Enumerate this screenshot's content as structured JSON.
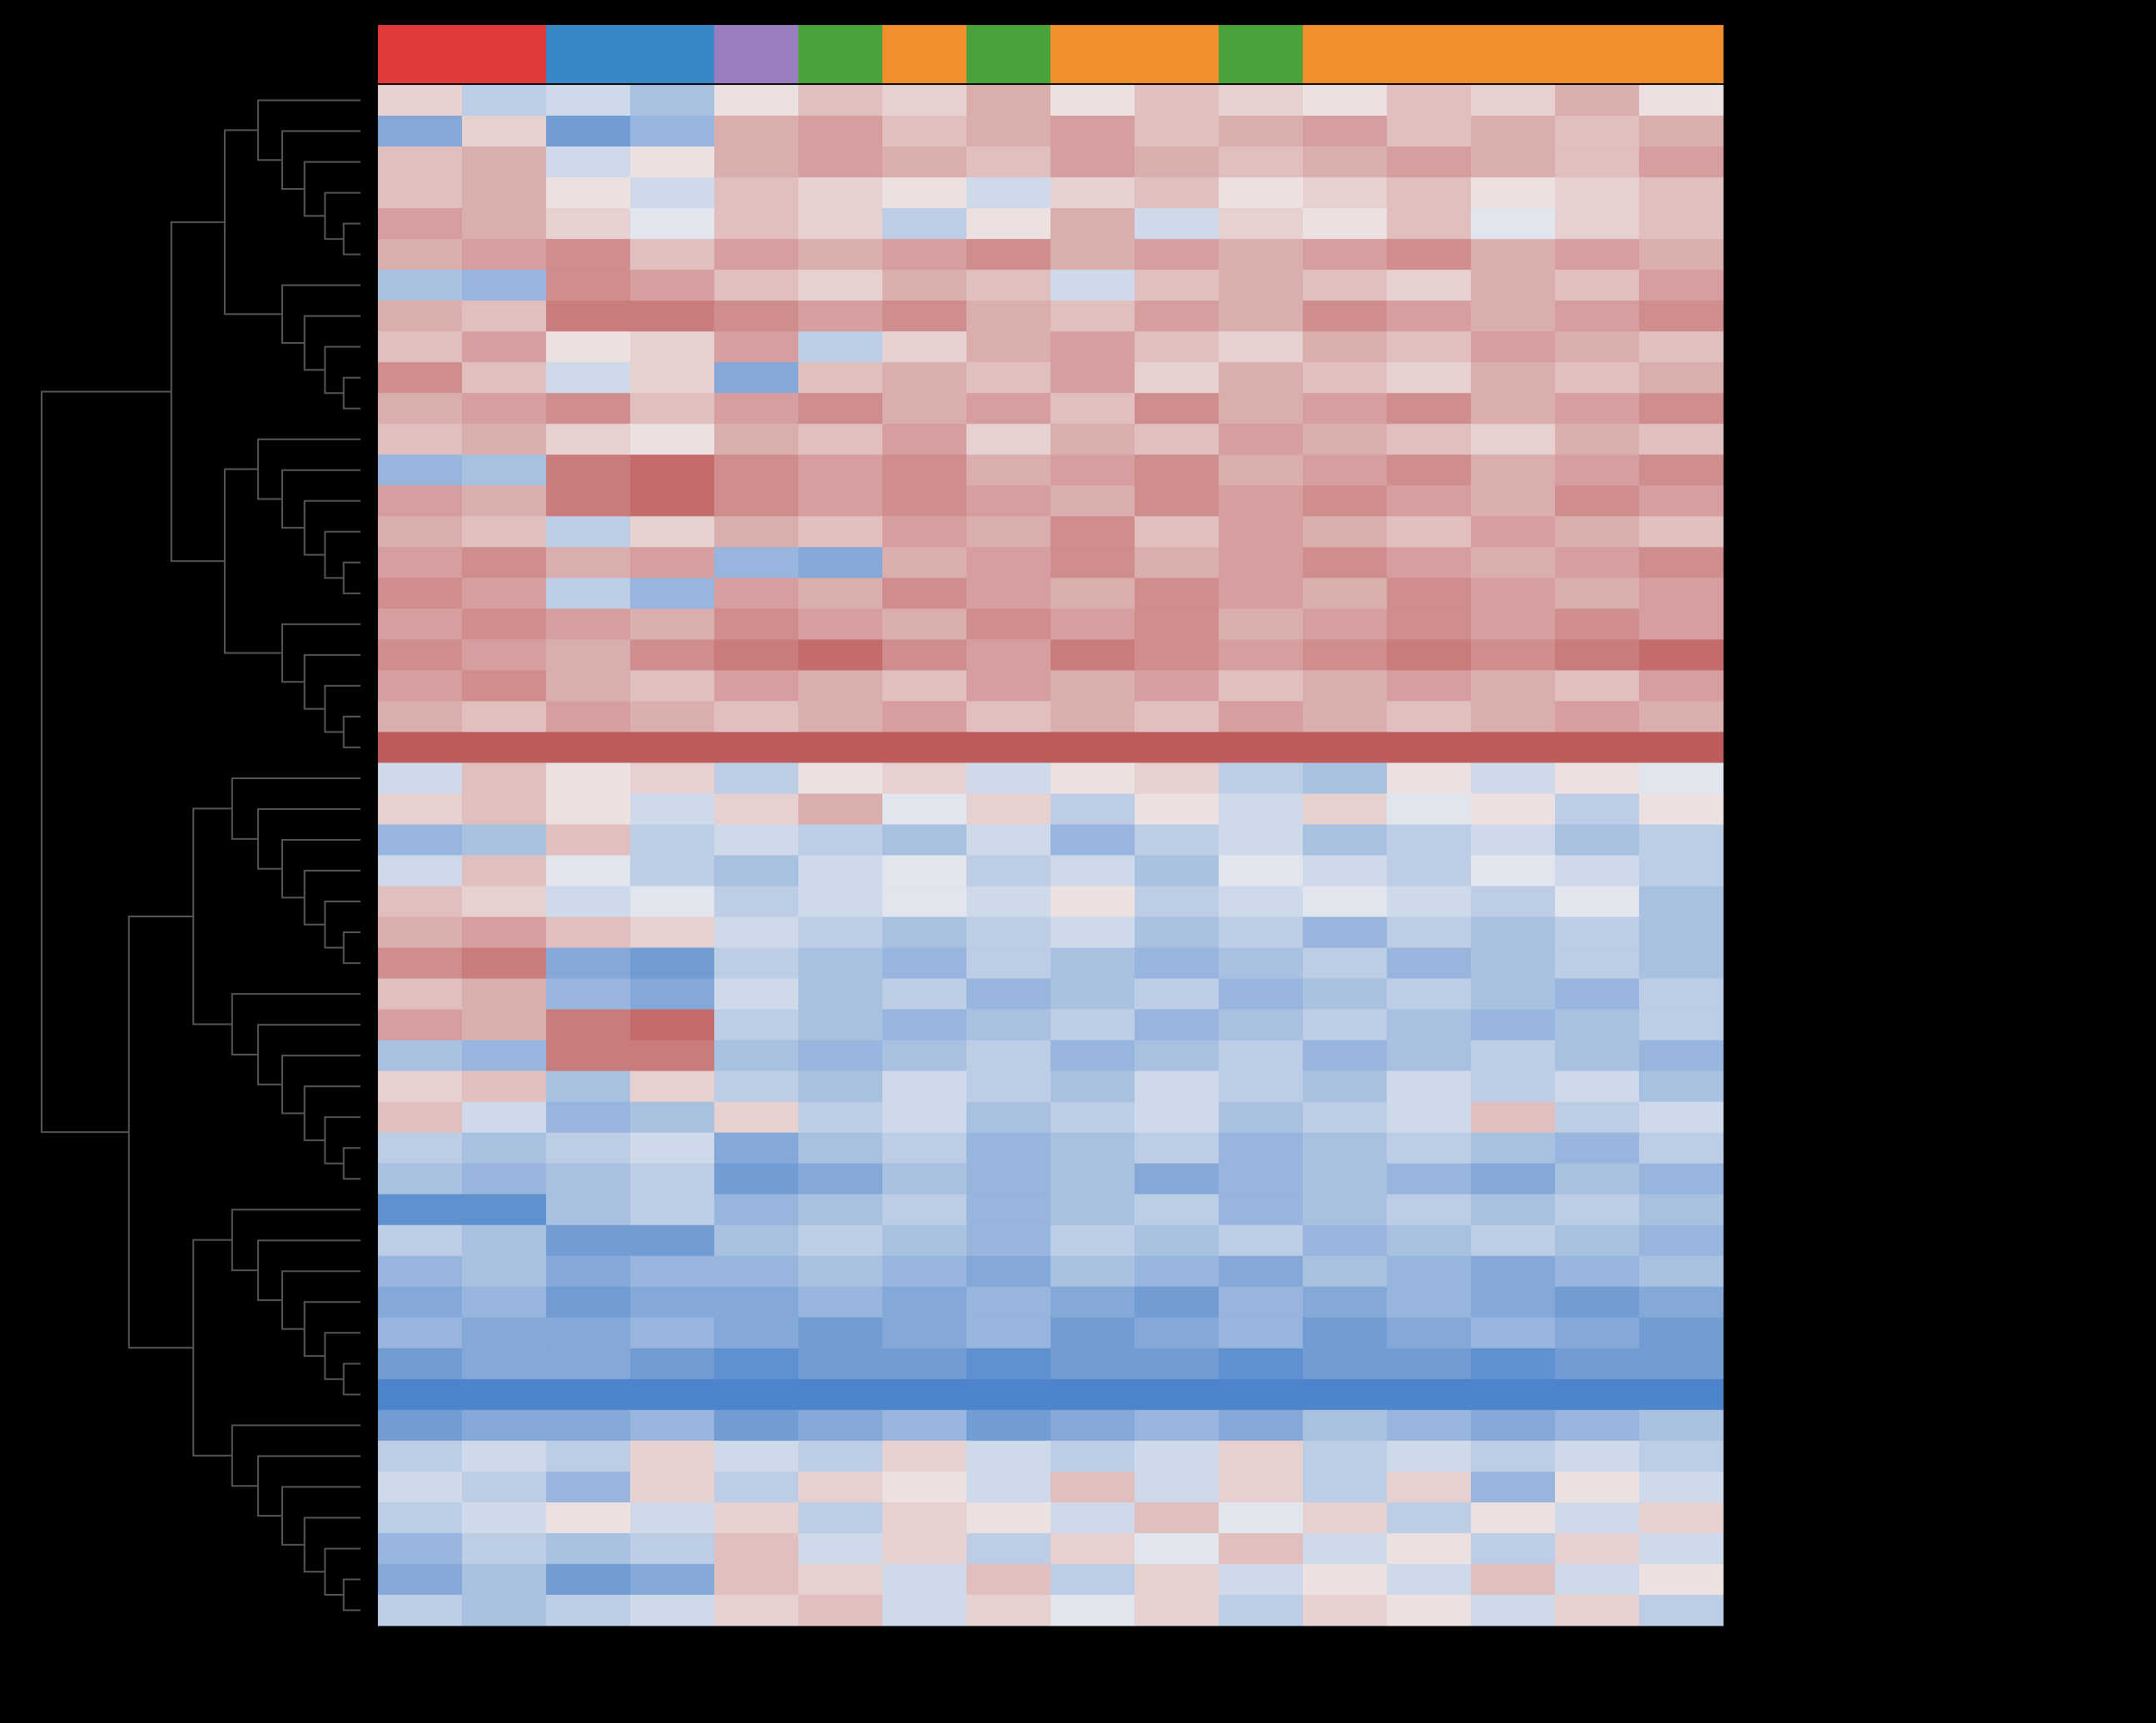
{
  "chart_data": {
    "type": "heatmap",
    "vlim": [
      -1,
      1
    ],
    "colormap": {
      "low": "#3a78c8",
      "mid": "#f3f1f1",
      "high": "#b84a4a"
    },
    "column_colors": [
      "#e03b3b",
      "#e03b3b",
      "#3a87c8",
      "#3a87c8",
      "#9a7fc0",
      "#4aa33a",
      "#f28e2b",
      "#4aa33a",
      "#f28e2b",
      "#f28e2b",
      "#4aa33a",
      "#f28e2b",
      "#f28e2b",
      "#f28e2b",
      "#f28e2b",
      "#f28e2b"
    ],
    "values": [
      [
        0.2,
        -0.3,
        -0.2,
        -0.4,
        0.1,
        0.3,
        0.2,
        0.4,
        0.1,
        0.3,
        0.2,
        0.1,
        0.3,
        0.2,
        0.4,
        0.1
      ],
      [
        -0.6,
        0.2,
        -0.7,
        -0.5,
        0.4,
        0.5,
        0.3,
        0.4,
        0.5,
        0.3,
        0.4,
        0.5,
        0.3,
        0.4,
        0.3,
        0.4
      ],
      [
        0.3,
        0.4,
        -0.2,
        0.1,
        0.4,
        0.5,
        0.4,
        0.3,
        0.5,
        0.4,
        0.3,
        0.4,
        0.5,
        0.4,
        0.3,
        0.5
      ],
      [
        0.3,
        0.4,
        0.1,
        -0.2,
        0.3,
        0.2,
        0.1,
        -0.2,
        0.2,
        0.3,
        0.1,
        0.2,
        0.3,
        0.1,
        0.2,
        0.3
      ],
      [
        0.5,
        0.4,
        0.2,
        -0.1,
        0.3,
        0.2,
        -0.3,
        0.1,
        0.4,
        -0.2,
        0.2,
        0.1,
        0.3,
        -0.1,
        0.2,
        0.3
      ],
      [
        0.4,
        0.5,
        0.6,
        0.3,
        0.5,
        0.4,
        0.5,
        0.6,
        0.4,
        0.5,
        0.4,
        0.5,
        0.6,
        0.4,
        0.5,
        0.4
      ],
      [
        -0.4,
        -0.5,
        0.6,
        0.5,
        0.3,
        0.2,
        0.4,
        0.3,
        -0.2,
        0.3,
        0.4,
        0.3,
        0.2,
        0.4,
        0.3,
        0.5
      ],
      [
        0.4,
        0.3,
        0.7,
        0.7,
        0.6,
        0.5,
        0.6,
        0.4,
        0.3,
        0.5,
        0.4,
        0.6,
        0.5,
        0.4,
        0.5,
        0.6
      ],
      [
        0.3,
        0.5,
        0.1,
        0.2,
        0.5,
        -0.3,
        0.2,
        0.4,
        0.5,
        0.3,
        0.2,
        0.4,
        0.3,
        0.5,
        0.4,
        0.3
      ],
      [
        0.6,
        0.3,
        -0.2,
        0.2,
        -0.6,
        0.3,
        0.4,
        0.3,
        0.5,
        0.2,
        0.4,
        0.3,
        0.2,
        0.4,
        0.3,
        0.4
      ],
      [
        0.4,
        0.5,
        0.6,
        0.3,
        0.5,
        0.6,
        0.4,
        0.5,
        0.3,
        0.6,
        0.4,
        0.5,
        0.6,
        0.4,
        0.5,
        0.6
      ],
      [
        0.3,
        0.4,
        0.2,
        0.1,
        0.4,
        0.3,
        0.5,
        0.2,
        0.4,
        0.3,
        0.5,
        0.4,
        0.3,
        0.2,
        0.4,
        0.3
      ],
      [
        -0.5,
        -0.4,
        0.7,
        0.8,
        0.6,
        0.5,
        0.6,
        0.4,
        0.5,
        0.6,
        0.4,
        0.5,
        0.6,
        0.4,
        0.5,
        0.6
      ],
      [
        0.5,
        0.4,
        0.7,
        0.8,
        0.6,
        0.5,
        0.6,
        0.5,
        0.4,
        0.6,
        0.5,
        0.6,
        0.5,
        0.4,
        0.6,
        0.5
      ],
      [
        0.4,
        0.3,
        -0.3,
        0.2,
        0.4,
        0.3,
        0.5,
        0.4,
        0.6,
        0.3,
        0.5,
        0.4,
        0.3,
        0.5,
        0.4,
        0.3
      ],
      [
        0.5,
        0.6,
        0.4,
        0.5,
        -0.5,
        -0.6,
        0.4,
        0.5,
        0.6,
        0.4,
        0.5,
        0.6,
        0.5,
        0.4,
        0.5,
        0.6
      ],
      [
        0.6,
        0.5,
        -0.3,
        -0.5,
        0.5,
        0.4,
        0.6,
        0.5,
        0.4,
        0.6,
        0.5,
        0.4,
        0.6,
        0.5,
        0.4,
        0.5
      ],
      [
        0.5,
        0.6,
        0.5,
        0.4,
        0.6,
        0.5,
        0.4,
        0.6,
        0.5,
        0.6,
        0.4,
        0.5,
        0.6,
        0.5,
        0.6,
        0.5
      ],
      [
        0.6,
        0.5,
        0.4,
        0.6,
        0.7,
        0.8,
        0.6,
        0.5,
        0.7,
        0.6,
        0.5,
        0.6,
        0.7,
        0.6,
        0.7,
        0.8
      ],
      [
        0.5,
        0.6,
        0.4,
        0.3,
        0.5,
        0.4,
        0.3,
        0.5,
        0.4,
        0.5,
        0.3,
        0.4,
        0.5,
        0.4,
        0.3,
        0.5
      ],
      [
        0.4,
        0.3,
        0.5,
        0.4,
        0.3,
        0.4,
        0.5,
        0.3,
        0.4,
        0.3,
        0.5,
        0.4,
        0.3,
        0.4,
        0.5,
        0.4
      ],
      [
        0.9,
        0.9,
        0.9,
        0.9,
        0.9,
        0.9,
        0.9,
        0.9,
        0.9,
        0.9,
        0.9,
        0.9,
        0.9,
        0.9,
        0.9,
        0.9
      ],
      [
        -0.2,
        0.3,
        0.1,
        0.2,
        -0.3,
        0.1,
        0.2,
        -0.2,
        0.1,
        0.2,
        -0.3,
        -0.4,
        0.1,
        -0.2,
        0.1,
        -0.1
      ],
      [
        0.2,
        0.3,
        0.1,
        -0.2,
        0.2,
        0.4,
        -0.1,
        0.2,
        -0.3,
        0.1,
        -0.2,
        0.2,
        -0.1,
        0.1,
        -0.3,
        0.1
      ],
      [
        -0.5,
        -0.4,
        0.3,
        -0.3,
        -0.2,
        -0.3,
        -0.4,
        -0.2,
        -0.5,
        -0.3,
        -0.2,
        -0.4,
        -0.3,
        -0.2,
        -0.4,
        -0.3
      ],
      [
        -0.2,
        0.3,
        -0.1,
        -0.3,
        -0.4,
        -0.2,
        -0.1,
        -0.3,
        -0.2,
        -0.4,
        -0.1,
        -0.2,
        -0.3,
        -0.1,
        -0.2,
        -0.3
      ],
      [
        0.3,
        0.2,
        -0.2,
        -0.1,
        -0.3,
        -0.2,
        -0.1,
        -0.2,
        0.1,
        -0.3,
        -0.2,
        -0.1,
        -0.2,
        -0.3,
        -0.1,
        -0.4
      ],
      [
        0.4,
        0.5,
        0.3,
        0.2,
        -0.2,
        -0.3,
        -0.4,
        -0.3,
        -0.2,
        -0.4,
        -0.3,
        -0.5,
        -0.3,
        -0.4,
        -0.3,
        -0.4
      ],
      [
        0.6,
        0.7,
        -0.6,
        -0.7,
        -0.3,
        -0.4,
        -0.5,
        -0.3,
        -0.4,
        -0.5,
        -0.4,
        -0.3,
        -0.5,
        -0.4,
        -0.3,
        -0.4
      ],
      [
        0.3,
        0.4,
        -0.5,
        -0.6,
        -0.2,
        -0.4,
        -0.3,
        -0.5,
        -0.4,
        -0.3,
        -0.5,
        -0.4,
        -0.3,
        -0.4,
        -0.5,
        -0.3
      ],
      [
        0.5,
        0.4,
        0.7,
        0.8,
        -0.3,
        -0.4,
        -0.5,
        -0.4,
        -0.3,
        -0.5,
        -0.4,
        -0.3,
        -0.4,
        -0.5,
        -0.4,
        -0.3
      ],
      [
        -0.4,
        -0.5,
        0.7,
        0.7,
        -0.4,
        -0.5,
        -0.4,
        -0.3,
        -0.5,
        -0.4,
        -0.3,
        -0.5,
        -0.4,
        -0.3,
        -0.4,
        -0.5
      ],
      [
        0.2,
        0.3,
        -0.4,
        0.2,
        -0.3,
        -0.4,
        -0.2,
        -0.3,
        -0.4,
        -0.2,
        -0.3,
        -0.4,
        -0.2,
        -0.3,
        -0.2,
        -0.4
      ],
      [
        0.3,
        -0.2,
        -0.5,
        -0.4,
        0.2,
        -0.3,
        -0.2,
        -0.4,
        -0.3,
        -0.2,
        -0.4,
        -0.3,
        -0.2,
        0.3,
        -0.3,
        -0.2
      ],
      [
        -0.3,
        -0.4,
        -0.3,
        -0.2,
        -0.6,
        -0.4,
        -0.3,
        -0.5,
        -0.4,
        -0.3,
        -0.5,
        -0.4,
        -0.3,
        -0.4,
        -0.5,
        -0.3
      ],
      [
        -0.4,
        -0.5,
        -0.4,
        -0.3,
        -0.7,
        -0.6,
        -0.4,
        -0.5,
        -0.4,
        -0.6,
        -0.5,
        -0.4,
        -0.5,
        -0.6,
        -0.4,
        -0.5
      ],
      [
        -0.8,
        -0.8,
        -0.4,
        -0.3,
        -0.5,
        -0.4,
        -0.3,
        -0.5,
        -0.4,
        -0.3,
        -0.5,
        -0.4,
        -0.3,
        -0.4,
        -0.3,
        -0.4
      ],
      [
        -0.3,
        -0.4,
        -0.7,
        -0.7,
        -0.4,
        -0.3,
        -0.4,
        -0.5,
        -0.3,
        -0.4,
        -0.3,
        -0.5,
        -0.4,
        -0.3,
        -0.4,
        -0.5
      ],
      [
        -0.5,
        -0.4,
        -0.6,
        -0.5,
        -0.5,
        -0.4,
        -0.5,
        -0.6,
        -0.4,
        -0.5,
        -0.6,
        -0.4,
        -0.5,
        -0.6,
        -0.5,
        -0.4
      ],
      [
        -0.6,
        -0.5,
        -0.7,
        -0.6,
        -0.6,
        -0.5,
        -0.6,
        -0.5,
        -0.6,
        -0.7,
        -0.5,
        -0.6,
        -0.5,
        -0.6,
        -0.7,
        -0.6
      ],
      [
        -0.5,
        -0.6,
        -0.6,
        -0.5,
        -0.6,
        -0.7,
        -0.6,
        -0.5,
        -0.7,
        -0.6,
        -0.5,
        -0.7,
        -0.6,
        -0.5,
        -0.6,
        -0.7
      ],
      [
        -0.7,
        -0.6,
        -0.6,
        -0.7,
        -0.8,
        -0.7,
        -0.7,
        -0.8,
        -0.7,
        -0.7,
        -0.8,
        -0.7,
        -0.7,
        -0.8,
        -0.7,
        -0.7
      ],
      [
        -0.9,
        -0.9,
        -0.9,
        -0.9,
        -0.9,
        -0.9,
        -0.9,
        -0.9,
        -0.9,
        -0.9,
        -0.9,
        -0.9,
        -0.9,
        -0.9,
        -0.9,
        -0.9
      ],
      [
        -0.7,
        -0.6,
        -0.6,
        -0.5,
        -0.7,
        -0.6,
        -0.5,
        -0.7,
        -0.6,
        -0.5,
        -0.6,
        -0.4,
        -0.5,
        -0.6,
        -0.5,
        -0.4
      ],
      [
        -0.3,
        -0.2,
        -0.3,
        0.2,
        -0.2,
        -0.3,
        0.2,
        -0.2,
        -0.3,
        -0.2,
        0.2,
        -0.3,
        -0.2,
        -0.3,
        -0.2,
        -0.3
      ],
      [
        -0.2,
        -0.3,
        -0.5,
        0.2,
        -0.3,
        0.2,
        0.1,
        -0.2,
        0.3,
        -0.2,
        0.2,
        -0.3,
        0.2,
        -0.5,
        0.1,
        -0.2
      ],
      [
        -0.3,
        -0.2,
        0.1,
        -0.2,
        0.2,
        -0.3,
        0.2,
        0.1,
        -0.2,
        0.3,
        -0.1,
        0.2,
        -0.3,
        0.1,
        -0.2,
        0.2
      ],
      [
        -0.5,
        -0.3,
        -0.4,
        -0.3,
        0.3,
        -0.2,
        0.2,
        -0.3,
        0.2,
        -0.1,
        0.3,
        -0.2,
        0.1,
        -0.3,
        0.2,
        -0.2
      ],
      [
        -0.6,
        -0.4,
        -0.7,
        -0.6,
        0.3,
        0.2,
        -0.2,
        0.3,
        -0.3,
        0.2,
        -0.2,
        0.1,
        -0.2,
        0.3,
        -0.2,
        0.1
      ],
      [
        -0.3,
        -0.4,
        -0.3,
        -0.2,
        0.2,
        0.3,
        -0.2,
        0.2,
        -0.1,
        0.2,
        -0.3,
        0.2,
        0.1,
        -0.2,
        0.2,
        -0.3
      ]
    ]
  }
}
